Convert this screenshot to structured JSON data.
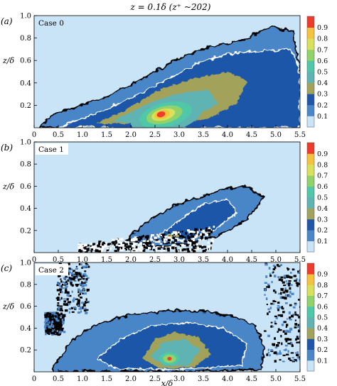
{
  "figure": {
    "title": "z = 0.1δ (z⁺ ~202)"
  },
  "colorbar": {
    "ticks": [
      "0.9",
      "0.8",
      "0.7",
      "0.6",
      "0.5",
      "0.4",
      "0.3",
      "0.2",
      "0.1"
    ],
    "colors": [
      "#c9e4f7",
      "#4a86c8",
      "#1f57a8",
      "#a3a25a",
      "#5fb3b2",
      "#4fc7a8",
      "#8fd36a",
      "#d9e15b",
      "#f5c23b",
      "#ee3b2c"
    ]
  },
  "chart_data": [
    {
      "type": "heatmap",
      "panel": "(a)",
      "case": "Case 0",
      "xlabel": "",
      "ylabel": "z/δ",
      "xlim": [
        0,
        5.5
      ],
      "ylim": [
        0,
        1.0
      ],
      "x_ticks": [
        "0",
        "0.5",
        "1.0",
        "1.5",
        "2.0",
        "2.5",
        "3.0",
        "3.5",
        "4.0",
        "4.5",
        "5.0",
        "5.5"
      ],
      "y_ticks": [
        "0.2",
        "0.4",
        "0.6",
        "0.8",
        "1.0"
      ],
      "peak": {
        "x": 2.75,
        "z": 0.1,
        "value": 0.9
      },
      "outer_contour_x_range": [
        0.1,
        5.5
      ]
    },
    {
      "type": "heatmap",
      "panel": "(b)",
      "case": "Case 1",
      "xlabel": "",
      "ylabel": "z/δ",
      "xlim": [
        0,
        5.5
      ],
      "ylim": [
        0,
        1.0
      ],
      "x_ticks": [
        "0",
        "0.5",
        "1.0",
        "1.5",
        "2.0",
        "2.5",
        "3.0",
        "3.5",
        "4.0",
        "4.5",
        "5.0",
        "5.5"
      ],
      "y_ticks": [
        "0.2",
        "0.4",
        "0.6",
        "0.8",
        "1.0"
      ],
      "peak": {
        "x": 2.8,
        "z": 0.15,
        "value": 0.4
      },
      "outer_contour_x_range": [
        0.9,
        4.8
      ]
    },
    {
      "type": "heatmap",
      "panel": "(c)",
      "case": "Case 2",
      "xlabel": "x/δ",
      "ylabel": "z/δ",
      "xlim": [
        0,
        5.5
      ],
      "ylim": [
        0,
        1.0
      ],
      "x_ticks": [
        "0",
        "0.5",
        "1.0",
        "1.5",
        "2.0",
        "2.5",
        "3.0",
        "3.5",
        "4.0",
        "4.5",
        "5.0",
        "5.5"
      ],
      "y_ticks": [
        "0.2",
        "0.4",
        "0.6",
        "0.8",
        "1.0"
      ],
      "peak": {
        "x": 2.8,
        "z": 0.12,
        "value": 0.9
      },
      "outer_contour_x_range": [
        0.4,
        5.5
      ]
    }
  ]
}
